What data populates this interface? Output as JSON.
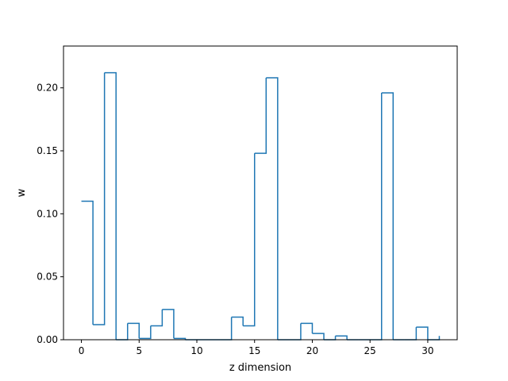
{
  "chart_data": {
    "type": "line",
    "drawstyle": "steps-post",
    "title": "",
    "xlabel": "z dimension",
    "ylabel": "w",
    "xlim": [
      -1.55,
      32.55
    ],
    "ylim": [
      0,
      0.2332
    ],
    "x_ticks": [
      0,
      5,
      10,
      15,
      20,
      25,
      30
    ],
    "x_tick_labels": [
      "0",
      "5",
      "10",
      "15",
      "20",
      "25",
      "30"
    ],
    "y_ticks": [
      0.0,
      0.05,
      0.1,
      0.15,
      0.2
    ],
    "y_tick_labels": [
      "0.00",
      "0.05",
      "0.10",
      "0.15",
      "0.20"
    ],
    "grid": false,
    "legend": "none",
    "series": [
      {
        "color": "#1f77b4",
        "x": [
          0,
          1,
          2,
          3,
          4,
          5,
          6,
          7,
          8,
          9,
          10,
          11,
          12,
          13,
          14,
          15,
          16,
          17,
          18,
          19,
          20,
          21,
          22,
          23,
          24,
          25,
          26,
          27,
          28,
          29,
          30,
          31
        ],
        "values": [
          0.11,
          0.012,
          0.212,
          0.0,
          0.013,
          0.001,
          0.011,
          0.024,
          0.001,
          0.0,
          0.0,
          0.0,
          0.0,
          0.018,
          0.011,
          0.148,
          0.208,
          0.0,
          0.0,
          0.013,
          0.005,
          0.0,
          0.003,
          0.0,
          0.0,
          0.0,
          0.196,
          0.0,
          0.0,
          0.01,
          0.0,
          0.003
        ]
      }
    ]
  }
}
